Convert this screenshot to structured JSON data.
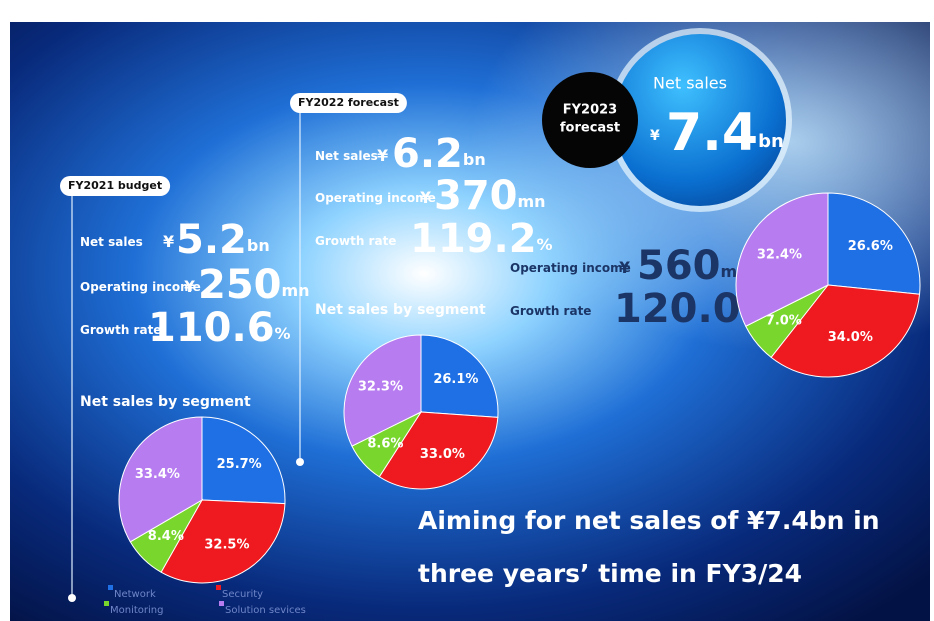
{
  "panels": [
    {
      "label": "FY2021 budget",
      "rows": [
        {
          "label": "Net sales",
          "prefix": "¥",
          "value": "5.2",
          "unit": "bn"
        },
        {
          "label": "Operating income",
          "prefix": "¥",
          "value": "250",
          "unit": "mn"
        },
        {
          "label": "Growth rate",
          "value": "110.6",
          "unit": "%"
        }
      ]
    },
    {
      "label": "FY2022 forecast",
      "rows": [
        {
          "label": "Net sales",
          "prefix": "¥",
          "value": "6.2",
          "unit": "bn"
        },
        {
          "label": "Operating income",
          "prefix": "¥",
          "value": "370",
          "unit": "mn"
        },
        {
          "label": "Growth rate",
          "value": "119.2",
          "unit": "%"
        }
      ]
    },
    {
      "label_lines": [
        "FY2023",
        "forecast"
      ],
      "rows": [
        {
          "label": "Net sales",
          "prefix": "¥",
          "value": "7.4",
          "unit": "bn"
        },
        {
          "label": "Operating income",
          "prefix": "¥",
          "value": "560",
          "unit": "mn"
        },
        {
          "label": "Growth rate",
          "value": "120.0",
          "unit": "%"
        }
      ]
    }
  ],
  "chart_data": [
    {
      "type": "pie",
      "title": "Net sales by segment",
      "categories": [
        "Network",
        "Security",
        "Monitoring",
        "Solution sevices"
      ],
      "colors": [
        "#1f6fe5",
        "#ee1a1f",
        "#78d62c",
        "#b77cf0"
      ],
      "values": [
        25.7,
        32.5,
        8.4,
        33.4
      ],
      "value_labels": [
        "25.7%",
        "32.5%",
        "8.4%",
        "33.4%"
      ]
    },
    {
      "type": "pie",
      "title": "Net sales by segment",
      "categories": [
        "Network",
        "Security",
        "Monitoring",
        "Solution sevices"
      ],
      "colors": [
        "#1f6fe5",
        "#ee1a1f",
        "#78d62c",
        "#b77cf0"
      ],
      "values": [
        26.1,
        33.0,
        8.6,
        32.3
      ],
      "value_labels": [
        "26.1%",
        "33.0%",
        "8.6%",
        "32.3%"
      ]
    },
    {
      "type": "pie",
      "categories": [
        "Network",
        "Security",
        "Monitoring",
        "Solution sevices"
      ],
      "colors": [
        "#1f6fe5",
        "#ee1a1f",
        "#78d62c",
        "#b77cf0"
      ],
      "values": [
        26.6,
        34.0,
        7.0,
        32.4
      ],
      "value_labels": [
        "26.6%",
        "34.0%",
        "7.0%",
        "32.4%"
      ]
    }
  ],
  "headline": [
    "Aiming for net sales of ¥7.4bn in",
    "three years’ time in FY3/24"
  ]
}
